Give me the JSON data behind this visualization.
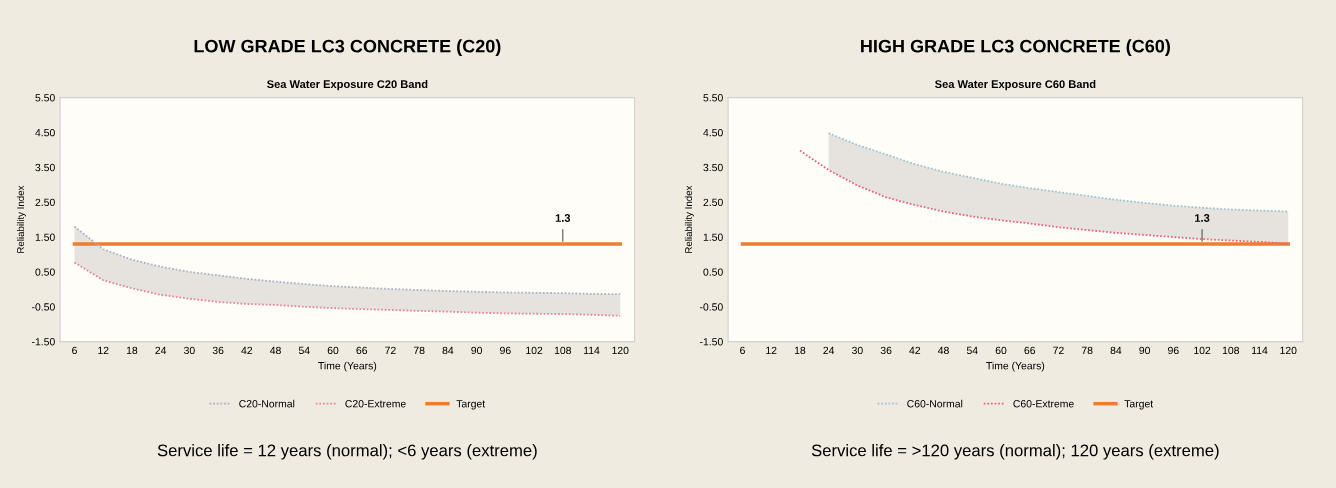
{
  "chart_data": [
    {
      "type": "line",
      "title": "LOW GRADE LC3 CONCRETE (C20)",
      "subtitle": "Sea Water Exposure C20 Band",
      "xlabel": "Time (Years)",
      "ylabel": "Reliability Index",
      "categories": [
        "6",
        "12",
        "18",
        "24",
        "30",
        "36",
        "42",
        "48",
        "54",
        "60",
        "66",
        "72",
        "78",
        "84",
        "90",
        "96",
        "102",
        "108",
        "114",
        "120"
      ],
      "series": [
        {
          "name": "C20-Normal",
          "color": "#a9b4c6",
          "line_style": "dotted",
          "values": [
            1.8,
            1.15,
            0.85,
            0.65,
            0.5,
            0.4,
            0.3,
            0.22,
            0.15,
            0.09,
            0.05,
            0.01,
            -0.02,
            -0.05,
            -0.07,
            -0.09,
            -0.1,
            -0.11,
            -0.13,
            -0.14
          ],
          "lower": [
            0.77,
            0.26,
            0.03,
            -0.16,
            -0.27,
            -0.36,
            -0.42,
            -0.45,
            -0.5,
            -0.54,
            -0.57,
            -0.59,
            -0.62,
            -0.64,
            -0.67,
            -0.69,
            -0.7,
            -0.71,
            -0.73,
            -0.76
          ],
          "upper": [
            1.8,
            1.15,
            0.85,
            0.65,
            0.5,
            0.4,
            0.3,
            0.22,
            0.15,
            0.09,
            0.05,
            0.01,
            -0.02,
            -0.05,
            -0.07,
            -0.09,
            -0.1,
            -0.11,
            -0.13,
            -0.14
          ]
        },
        {
          "name": "C20-Extreme",
          "color": "#e8879a",
          "line_style": "dotted",
          "values": [
            0.77,
            0.26,
            0.03,
            -0.16,
            -0.27,
            -0.36,
            -0.42,
            -0.45,
            -0.5,
            -0.54,
            -0.57,
            -0.59,
            -0.62,
            -0.64,
            -0.67,
            -0.69,
            -0.7,
            -0.71,
            -0.73,
            -0.76
          ]
        },
        {
          "name": "Target",
          "color": "#ed7d31",
          "line_style": "solid",
          "values": [
            1.3,
            1.3,
            1.3,
            1.3,
            1.3,
            1.3,
            1.3,
            1.3,
            1.3,
            1.3,
            1.3,
            1.3,
            1.3,
            1.3,
            1.3,
            1.3,
            1.3,
            1.3,
            1.3,
            1.3
          ]
        }
      ],
      "ylim": [
        -1.5,
        5.5
      ],
      "yticks": [
        {
          "value": -1.5,
          "label": "-1.50"
        },
        {
          "value": -0.5,
          "label": "-0.50"
        },
        {
          "value": 0.5,
          "label": "0.50"
        },
        {
          "value": 1.5,
          "label": "1.50"
        },
        {
          "value": 2.5,
          "label": "2.50"
        },
        {
          "value": 3.5,
          "label": "3.50"
        },
        {
          "value": 4.5,
          "label": "4.50"
        },
        {
          "value": 5.5,
          "label": "5.50"
        }
      ],
      "grid": false,
      "legend": "bottom",
      "marker": "none",
      "annotations": [
        {
          "text": "1.3",
          "x": "108",
          "y": 1.3
        },
        "Service life = 12 years (normal); <6 years (extreme)"
      ]
    },
    {
      "type": "line",
      "title": "HIGH GRADE LC3 CONCRETE (C60)",
      "subtitle": "Sea Water Exposure C60 Band",
      "xlabel": "Time (Years)",
      "ylabel": "Reliability Index",
      "categories": [
        "6",
        "12",
        "18",
        "24",
        "30",
        "36",
        "42",
        "48",
        "54",
        "60",
        "66",
        "72",
        "78",
        "84",
        "90",
        "96",
        "102",
        "108",
        "114",
        "120"
      ],
      "series": [
        {
          "name": "C60-Normal",
          "color": "#9fc3d6",
          "line_style": "dotted",
          "values": [
            null,
            null,
            null,
            4.48,
            4.14,
            3.87,
            3.59,
            3.37,
            3.2,
            3.03,
            2.9,
            2.79,
            2.68,
            2.57,
            2.48,
            2.4,
            2.34,
            2.29,
            2.26,
            2.23
          ],
          "lower": [
            null,
            null,
            null,
            3.42,
            2.98,
            2.64,
            2.42,
            2.23,
            2.09,
            1.98,
            1.89,
            1.78,
            1.7,
            1.62,
            1.56,
            1.5,
            1.44,
            1.4,
            1.36,
            1.31
          ],
          "upper": [
            null,
            null,
            null,
            4.48,
            4.14,
            3.87,
            3.59,
            3.37,
            3.2,
            3.03,
            2.9,
            2.79,
            2.68,
            2.57,
            2.48,
            2.4,
            2.34,
            2.29,
            2.26,
            2.23
          ]
        },
        {
          "name": "C60-Extreme",
          "color": "#e8677f",
          "line_style": "dotted",
          "values": [
            null,
            null,
            3.98,
            3.42,
            2.98,
            2.64,
            2.42,
            2.23,
            2.09,
            1.98,
            1.89,
            1.78,
            1.7,
            1.62,
            1.56,
            1.5,
            1.44,
            1.4,
            1.36,
            1.31
          ]
        },
        {
          "name": "Target",
          "color": "#ed7d31",
          "line_style": "solid",
          "values": [
            1.3,
            1.3,
            1.3,
            1.3,
            1.3,
            1.3,
            1.3,
            1.3,
            1.3,
            1.3,
            1.3,
            1.3,
            1.3,
            1.3,
            1.3,
            1.3,
            1.3,
            1.3,
            1.3,
            1.3
          ]
        }
      ],
      "ylim": [
        -1.5,
        5.5
      ],
      "yticks": [
        {
          "value": -1.5,
          "label": "-1.50"
        },
        {
          "value": -0.5,
          "label": "-0.50"
        },
        {
          "value": 0.5,
          "label": "0.50"
        },
        {
          "value": 1.5,
          "label": "1.50"
        },
        {
          "value": 2.5,
          "label": "2.50"
        },
        {
          "value": 3.5,
          "label": "3.50"
        },
        {
          "value": 4.5,
          "label": "4.50"
        },
        {
          "value": 5.5,
          "label": "5.50"
        }
      ],
      "grid": false,
      "legend": "bottom",
      "marker": "none",
      "annotations": [
        {
          "text": "1.3",
          "x": "102",
          "y": 1.3
        },
        "Service life = >120 years (normal); 120 years (extreme)"
      ]
    }
  ]
}
